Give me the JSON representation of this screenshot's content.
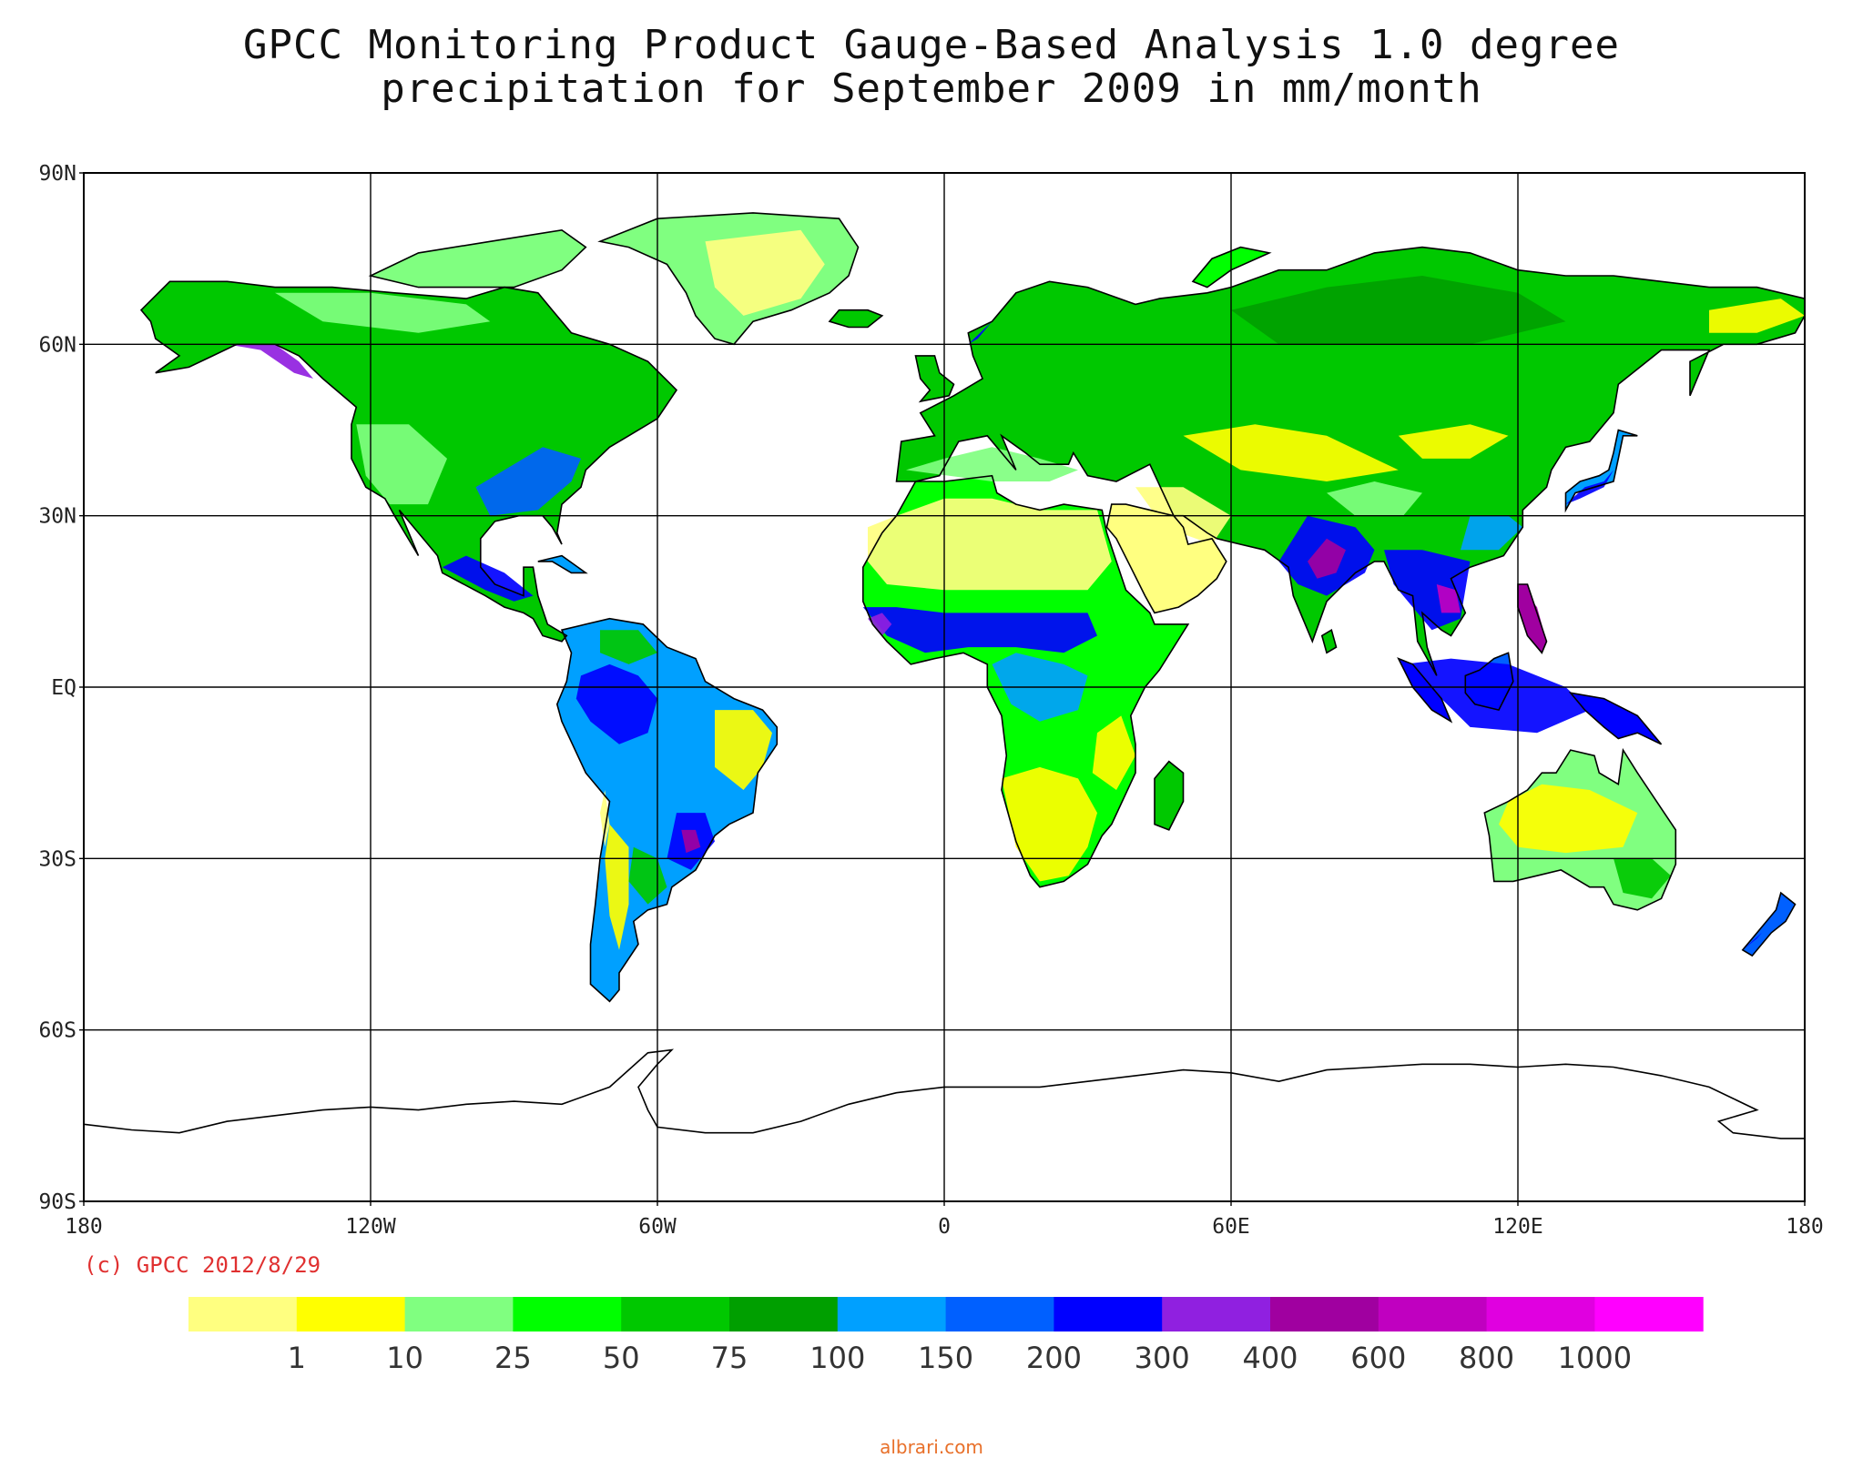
{
  "title": {
    "line1": "GPCC Monitoring Product Gauge-Based Analysis 1.0 degree",
    "line2": "precipitation for September  2009 in mm/month"
  },
  "map": {
    "lat_labels": [
      "90N",
      "60N",
      "30N",
      "EQ",
      "30S",
      "60S",
      "90S"
    ],
    "lon_labels": [
      "180",
      "120W",
      "60W",
      "0",
      "60E",
      "120E",
      "180"
    ],
    "grid": true
  },
  "credit": "(c) GPCC 2012/8/29",
  "legend": {
    "labels": [
      "1",
      "10",
      "25",
      "50",
      "75",
      "100",
      "150",
      "200",
      "300",
      "400",
      "600",
      "800",
      "1000"
    ],
    "colors": [
      "#ffff80",
      "#ffff00",
      "#80ff80",
      "#00ff00",
      "#00c800",
      "#009f00",
      "#00a0ff",
      "#0060ff",
      "#0000ff",
      "#9020e0",
      "#a000a0",
      "#c000c0",
      "#e000e0",
      "#ff00ff"
    ]
  },
  "watermark": "albrari.com",
  "chart_data": {
    "type": "heatmap",
    "variable": "precipitation",
    "units": "mm/month",
    "period": "September 2009",
    "x_extent": [
      -180,
      180
    ],
    "y_extent": [
      -90,
      90
    ],
    "bins": [
      "<1",
      "1-10",
      "10-25",
      "25-50",
      "50-75",
      "75-100",
      "100-150",
      "150-200",
      "200-300",
      "300-400",
      "400-600",
      "600-800",
      "800-1000",
      ">1000"
    ],
    "regions": [
      {
        "name": "Sahara",
        "bin": "<1"
      },
      {
        "name": "Arabian Peninsula",
        "bin": "<1"
      },
      {
        "name": "Greenland interior",
        "bin": "<1"
      },
      {
        "name": "Australia interior",
        "bin": "1-10"
      },
      {
        "name": "Southern Africa",
        "bin": "1-10"
      },
      {
        "name": "Eastern Brazil",
        "bin": "10-25"
      },
      {
        "name": "Siberia",
        "bin": "50-75"
      },
      {
        "name": "Canada",
        "bin": "50-75"
      },
      {
        "name": "Sahel",
        "bin": "200-300"
      },
      {
        "name": "Amazon west",
        "bin": "200-300"
      },
      {
        "name": "India",
        "bin": "300-400"
      },
      {
        "name": "Southeast Asia",
        "bin": "400-600"
      },
      {
        "name": "Southern Brazil",
        "bin": "400-600"
      },
      {
        "name": "Philippines",
        "bin": "400-600"
      },
      {
        "name": "Indonesia",
        "bin": "200-300"
      },
      {
        "name": "Central America",
        "bin": "300-400"
      },
      {
        "name": "Norway coast",
        "bin": "200-300"
      },
      {
        "name": "Alaska coast",
        "bin": "300-400"
      },
      {
        "name": "Eastern USA",
        "bin": "150-200"
      },
      {
        "name": "Western USA",
        "bin": "10-25"
      },
      {
        "name": "New Zealand",
        "bin": "150-200"
      }
    ]
  }
}
